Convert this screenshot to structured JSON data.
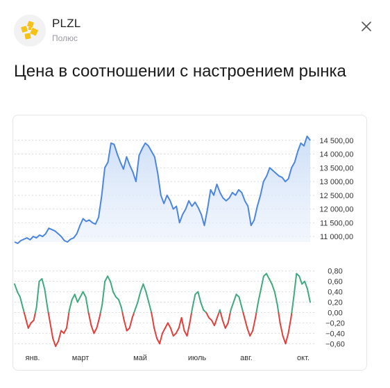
{
  "header": {
    "ticker": "PLZL",
    "company": "Полюс",
    "logo_icon": "polyus-logo-icon",
    "close_icon": "close-icon",
    "brand_color": "#f5c218"
  },
  "title": "Цена в соотношении с настроением рынка",
  "chart_data": [
    {
      "type": "area",
      "title": "",
      "xlabel": "",
      "ylabel": "",
      "color": "#4a86e0",
      "ylim": [
        10800,
        14900
      ],
      "y_ticks": [
        "14 500,00",
        "14 000,00",
        "13 500,00",
        "13 000,00",
        "12 500,00",
        "12 000,00",
        "11 500,00",
        "11 000,00"
      ],
      "y_tick_values": [
        14500,
        14000,
        13500,
        13000,
        12500,
        12000,
        11500,
        11000
      ],
      "x_ticks": [
        "янв.",
        "март",
        "май",
        "июль",
        "авг.",
        "окт."
      ],
      "grid": true,
      "values": [
        10800,
        10750,
        10850,
        10900,
        10950,
        10880,
        11000,
        10950,
        11050,
        11000,
        11100,
        11300,
        11250,
        11200,
        11100,
        11000,
        10850,
        10800,
        10900,
        10950,
        11100,
        11400,
        11650,
        11550,
        11600,
        11500,
        11450,
        11700,
        12500,
        13500,
        13700,
        14400,
        14350,
        14000,
        13700,
        13450,
        13900,
        13600,
        13350,
        13000,
        13950,
        14200,
        14400,
        14300,
        14100,
        13900,
        13300,
        12500,
        12200,
        12500,
        12300,
        12000,
        12100,
        11500,
        11800,
        12000,
        12300,
        12100,
        12250,
        12050,
        11800,
        11400,
        12000,
        12700,
        12500,
        12900,
        12600,
        12400,
        12300,
        12400,
        12600,
        12500,
        12700,
        12600,
        12300,
        12100,
        11400,
        11600,
        12100,
        12500,
        13000,
        13200,
        13500,
        13400,
        13300,
        13200,
        13150,
        13000,
        13100,
        13500,
        13700,
        14100,
        14400,
        14300,
        14650,
        14500
      ]
    },
    {
      "type": "line",
      "title": "",
      "xlabel": "",
      "ylabel": "",
      "color_positive": "#3fa97f",
      "color_negative": "#e0403c",
      "ylim": [
        -0.65,
        0.85
      ],
      "y_ticks": [
        "0,80",
        "0,60",
        "0,40",
        "0,20",
        "0,00",
        "−0,20",
        "−0,40",
        "−0,60"
      ],
      "y_tick_values": [
        0.8,
        0.6,
        0.4,
        0.2,
        0.0,
        -0.2,
        -0.4,
        -0.6
      ],
      "x_ticks": [
        "янв.",
        "март",
        "май",
        "июль",
        "авг.",
        "окт."
      ],
      "grid": true,
      "values": [
        0.55,
        0.4,
        0.3,
        0.1,
        -0.1,
        -0.3,
        -0.2,
        -0.15,
        0.1,
        0.6,
        0.65,
        0.45,
        0.1,
        -0.2,
        -0.5,
        -0.65,
        -0.55,
        -0.35,
        -0.4,
        -0.3,
        0.05,
        0.25,
        0.35,
        0.2,
        0.3,
        0.4,
        0.3,
        0.0,
        -0.25,
        -0.4,
        -0.3,
        -0.1,
        0.15,
        0.6,
        0.7,
        0.6,
        0.4,
        0.3,
        0.25,
        0.1,
        -0.15,
        -0.35,
        -0.3,
        -0.1,
        0.05,
        0.2,
        0.4,
        0.55,
        0.4,
        0.2,
        0.0,
        -0.3,
        -0.5,
        -0.6,
        -0.4,
        -0.3,
        -0.2,
        -0.3,
        -0.45,
        -0.4,
        -0.3,
        -0.1,
        -0.35,
        -0.45,
        -0.2,
        0.1,
        0.35,
        0.4,
        0.2,
        0.05,
        0.0,
        -0.1,
        -0.15,
        -0.25,
        -0.1,
        0.05,
        -0.15,
        -0.3,
        -0.2,
        0.05,
        0.2,
        0.35,
        0.3,
        0.1,
        -0.1,
        -0.3,
        -0.45,
        -0.35,
        -0.1,
        0.2,
        0.45,
        0.7,
        0.75,
        0.65,
        0.55,
        0.4,
        0.15,
        -0.2,
        -0.45,
        -0.6,
        -0.4,
        -0.1,
        0.3,
        0.75,
        0.7,
        0.55,
        0.6,
        0.45,
        0.2
      ]
    }
  ]
}
